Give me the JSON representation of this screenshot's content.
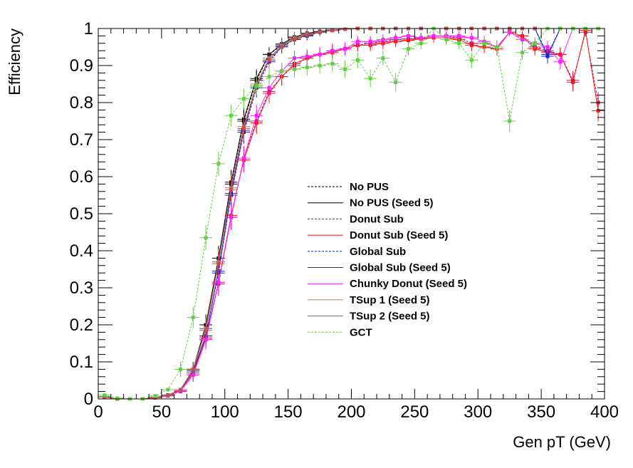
{
  "chart_data": {
    "type": "line",
    "title": "",
    "xlabel": "Gen pT (GeV)",
    "ylabel": "Efficiency",
    "xlim": [
      0,
      400
    ],
    "ylim": [
      0,
      1
    ],
    "x_ticks": [
      "0",
      "50",
      "100",
      "150",
      "200",
      "250",
      "300",
      "350",
      "400"
    ],
    "y_ticks": [
      "0",
      "0.1",
      "0.2",
      "0.3",
      "0.4",
      "0.5",
      "0.6",
      "0.7",
      "0.8",
      "0.9",
      "1"
    ],
    "grid": false,
    "legend_position": "center-right",
    "x": [
      5,
      15,
      25,
      35,
      45,
      55,
      65,
      75,
      85,
      95,
      105,
      115,
      125,
      135,
      145,
      155,
      165,
      175,
      185,
      195,
      205,
      215,
      225,
      235,
      245,
      255,
      265,
      275,
      285,
      295,
      305,
      315,
      325,
      335,
      345,
      355,
      365,
      375,
      385,
      395
    ],
    "series": [
      {
        "name": "No PUS",
        "color": "#000000",
        "dashed": true,
        "values": [
          0.005,
          0,
          0,
          0,
          0.003,
          0.01,
          0.025,
          0.08,
          0.19,
          0.37,
          0.58,
          0.75,
          0.86,
          0.93,
          0.955,
          0.975,
          0.985,
          0.99,
          0.995,
          0.998,
          1,
          1,
          1,
          1,
          1,
          1,
          1,
          1,
          1,
          1,
          1,
          1,
          1,
          1,
          1,
          1,
          1,
          1,
          1,
          1
        ]
      },
      {
        "name": "No PUS (Seed 5)",
        "color": "#000000",
        "dashed": false,
        "values": [
          0.005,
          0,
          0,
          0,
          0.003,
          0.01,
          0.025,
          0.08,
          0.2,
          0.38,
          0.585,
          0.755,
          0.865,
          0.93,
          0.958,
          0.977,
          0.987,
          0.992,
          0.996,
          0.998,
          1,
          1,
          1,
          1,
          1,
          1,
          1,
          1,
          1,
          1,
          1,
          1,
          1,
          1,
          1,
          1,
          1,
          1,
          1,
          1
        ]
      },
      {
        "name": "Donut Sub",
        "color": "#a0206a",
        "dashed": true,
        "values": [
          0.005,
          0,
          0,
          0,
          0.003,
          0.008,
          0.02,
          0.065,
          0.16,
          0.31,
          0.49,
          0.65,
          0.75,
          0.83,
          0.87,
          0.9,
          0.92,
          0.93,
          0.94,
          0.945,
          0.955,
          0.96,
          0.965,
          0.97,
          0.972,
          0.975,
          0.98,
          0.98,
          0.975,
          0.96,
          0.96,
          0.95,
          0.99,
          0.98,
          0.95,
          0.94,
          0.93,
          0.86,
          0.99,
          0.8
        ]
      },
      {
        "name": "Donut Sub (Seed 5)",
        "color": "#ff1010",
        "dashed": false,
        "values": [
          0.006,
          0,
          0,
          0,
          0.003,
          0.009,
          0.022,
          0.07,
          0.165,
          0.315,
          0.495,
          0.645,
          0.745,
          0.825,
          0.87,
          0.905,
          0.92,
          0.93,
          0.935,
          0.945,
          0.955,
          0.955,
          0.96,
          0.965,
          0.968,
          0.972,
          0.975,
          0.975,
          0.97,
          0.955,
          0.95,
          0.945,
          0.99,
          0.98,
          0.945,
          0.935,
          0.93,
          0.855,
          0.995,
          0.778
        ]
      },
      {
        "name": "Global Sub",
        "color": "#1020c0",
        "dashed": true,
        "values": [
          0.005,
          0,
          0,
          0,
          0.003,
          0.01,
          0.025,
          0.075,
          0.17,
          0.34,
          0.55,
          0.72,
          0.84,
          0.91,
          0.95,
          0.97,
          0.98,
          0.99,
          0.995,
          0.998,
          1,
          1,
          1,
          1,
          1,
          1,
          1,
          1,
          1,
          1,
          1,
          1,
          1,
          1,
          1,
          0.93,
          1,
          1,
          1,
          1
        ]
      },
      {
        "name": "Global Sub (Seed 5)",
        "color": "#1020e0",
        "dashed": false,
        "values": [
          0.005,
          0,
          0,
          0,
          0.003,
          0.01,
          0.025,
          0.075,
          0.17,
          0.345,
          0.555,
          0.725,
          0.845,
          0.915,
          0.952,
          0.972,
          0.982,
          0.99,
          0.995,
          0.998,
          1,
          1,
          1,
          1,
          1,
          1,
          1,
          1,
          1,
          1,
          1,
          1,
          1,
          1,
          1,
          0.925,
          1,
          1,
          1,
          1
        ]
      },
      {
        "name": "Chunky Donut (Seed 5)",
        "color": "#ff20ff",
        "dashed": false,
        "values": [
          0.005,
          0,
          0,
          0,
          0.003,
          0.009,
          0.022,
          0.065,
          0.16,
          0.315,
          0.49,
          0.65,
          0.765,
          0.84,
          0.885,
          0.92,
          0.925,
          0.93,
          0.94,
          0.945,
          0.965,
          0.965,
          0.97,
          0.975,
          0.98,
          0.975,
          0.98,
          0.98,
          0.98,
          0.975,
          0.965,
          0.95,
          0.99,
          0.97,
          0.96,
          0.95,
          0.91,
          1,
          1,
          1
        ]
      },
      {
        "name": "TSup 1 (Seed 5)",
        "color": "#b08060",
        "dashed": false,
        "values": [
          0.005,
          0,
          0,
          0,
          0.003,
          0.01,
          0.025,
          0.08,
          0.19,
          0.37,
          0.57,
          0.735,
          0.85,
          0.92,
          0.955,
          0.975,
          0.985,
          0.99,
          0.995,
          0.998,
          1,
          1,
          1,
          1,
          1,
          1,
          1,
          1,
          1,
          1,
          1,
          1,
          1,
          1,
          1,
          1,
          1,
          1,
          1,
          1
        ]
      },
      {
        "name": "TSup 2 (Seed 5)",
        "color": "#c05050",
        "dashed": false,
        "values": [
          0.005,
          0,
          0,
          0,
          0.003,
          0.01,
          0.025,
          0.078,
          0.185,
          0.365,
          0.565,
          0.73,
          0.845,
          0.915,
          0.95,
          0.972,
          0.983,
          0.99,
          0.995,
          0.998,
          1,
          1,
          1,
          1,
          1,
          1,
          1,
          1,
          1,
          1,
          1,
          1,
          1,
          1,
          1,
          1,
          1,
          1,
          1,
          1
        ]
      },
      {
        "name": "GCT",
        "color": "#60d040",
        "dashed": true,
        "values": [
          0.01,
          0.002,
          0,
          0,
          0.008,
          0.025,
          0.08,
          0.22,
          0.435,
          0.635,
          0.765,
          0.81,
          0.845,
          0.87,
          0.885,
          0.89,
          0.895,
          0.9,
          0.905,
          0.89,
          0.915,
          0.865,
          0.92,
          0.855,
          0.945,
          0.96,
          1,
          0.97,
          0.96,
          0.915,
          0.96,
          0.95,
          0.75,
          0.935,
          0.96,
          1,
          1,
          1,
          1,
          1
        ]
      }
    ]
  }
}
